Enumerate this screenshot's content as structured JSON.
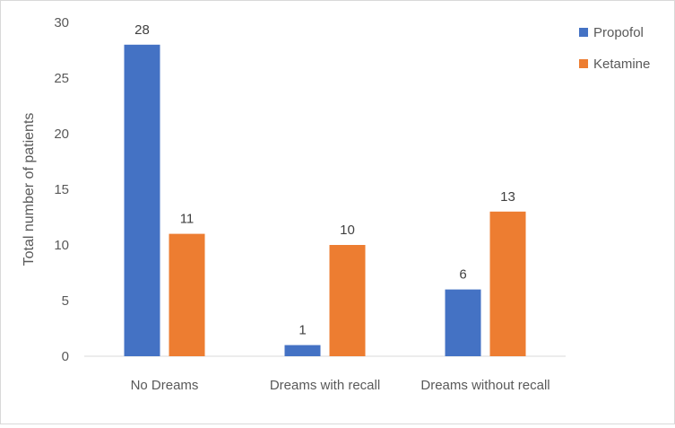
{
  "chart_data": {
    "type": "bar",
    "categories": [
      "No Dreams",
      "Dreams with recall",
      "Dreams without recall"
    ],
    "series": [
      {
        "name": "Propofol",
        "values": [
          28,
          1,
          6
        ],
        "color": "#4472C4"
      },
      {
        "name": "Ketamine",
        "values": [
          11,
          10,
          13
        ],
        "color": "#ED7D31"
      }
    ],
    "ylabel": "Total number of patients",
    "xlabel": "",
    "title": "",
    "ylim": [
      0,
      30
    ],
    "yticks": [
      0,
      5,
      10,
      15,
      20,
      25,
      30
    ],
    "grid": false,
    "legend_position": "top-right",
    "data_labels": true
  }
}
